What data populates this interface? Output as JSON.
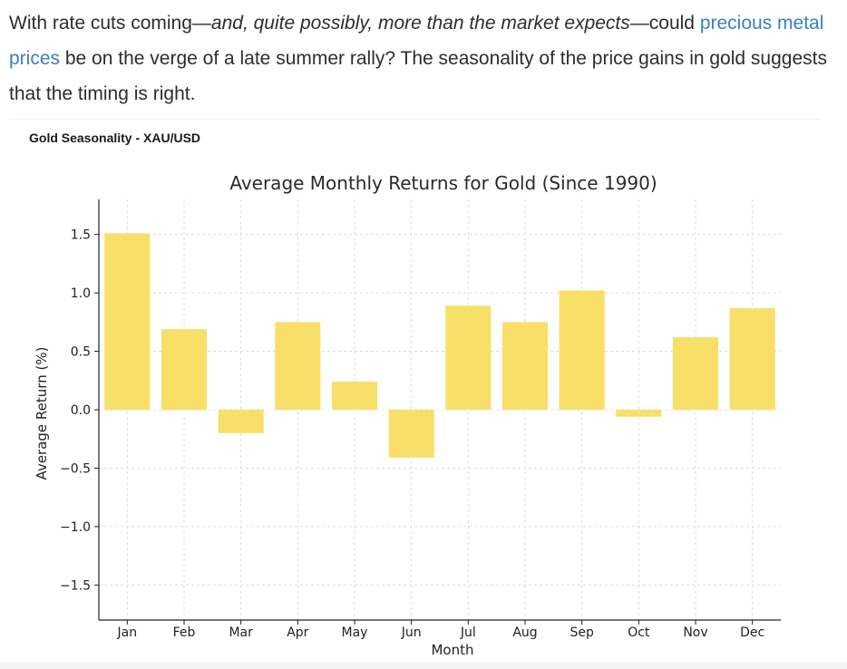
{
  "article": {
    "text_1": "With rate cuts coming—",
    "text_italic": "and, quite possibly, more than the market expects",
    "text_2": "—could ",
    "link_text": "precious metal prices",
    "text_3": " be on the verge of a late summer rally? The seasonality of the price gains in gold suggests that the timing is right."
  },
  "chart_heading": "Gold Seasonality - XAU/USD",
  "colors": {
    "bar": "#f7df6a",
    "link": "#3a7fc1",
    "grid": "#d6d6d6",
    "text": "#2d2d2d"
  },
  "chart_data": {
    "type": "bar",
    "title": "Average Monthly Returns for Gold (Since 1990)",
    "xlabel": "Month",
    "ylabel": "Average Return (%)",
    "categories": [
      "Jan",
      "Feb",
      "Mar",
      "Apr",
      "May",
      "Jun",
      "Jul",
      "Aug",
      "Sep",
      "Oct",
      "Nov",
      "Dec"
    ],
    "values": [
      1.51,
      0.69,
      -0.2,
      0.75,
      0.24,
      -0.41,
      0.89,
      0.75,
      1.02,
      -0.06,
      0.62,
      0.87
    ],
    "yticks": [
      -1.5,
      -1.0,
      -0.5,
      0.0,
      0.5,
      1.0,
      1.5
    ],
    "ytick_labels": [
      "−1.5",
      "−1.0",
      "−0.5",
      "0.0",
      "0.5",
      "1.0",
      "1.5"
    ],
    "ylim": [
      -1.8,
      1.8
    ],
    "grid": true,
    "series_color": "#f7df6a"
  }
}
